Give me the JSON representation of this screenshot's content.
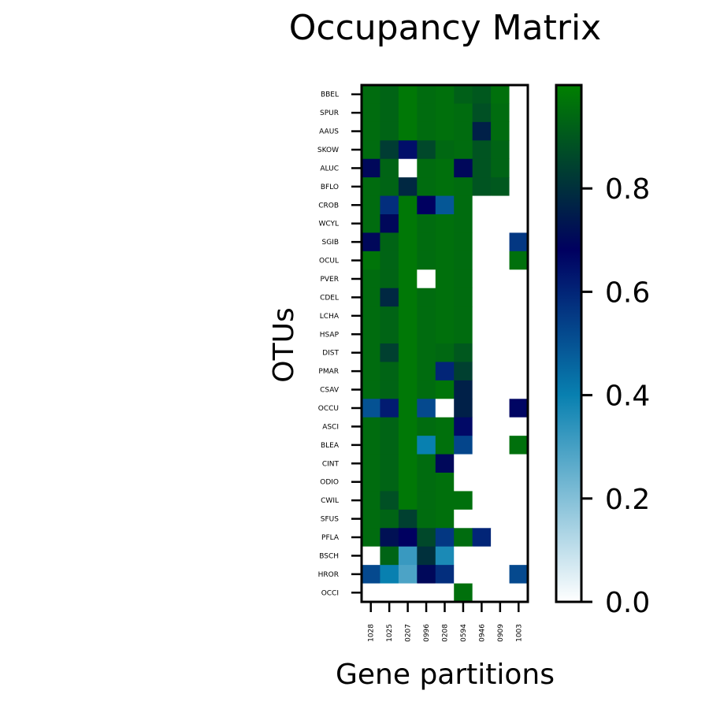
{
  "chart_data": {
    "type": "heatmap",
    "title": "Occupancy Matrix",
    "xlabel": "Gene partitions",
    "ylabel": "OTUs",
    "x_categories": [
      "1028",
      "1025",
      "0207",
      "0996",
      "0208",
      "0594",
      "0946",
      "0909",
      "1003"
    ],
    "y_categories": [
      "BBEL",
      "SPUR",
      "AAUS",
      "SKOW",
      "ALUC",
      "BFLO",
      "CROB",
      "WCYL",
      "SGIB",
      "OCUL",
      "PVER",
      "CDEL",
      "LCHA",
      "HSAP",
      "DIST",
      "PMAR",
      "CSAV",
      "OCCU",
      "ASCI",
      "BLEA",
      "CINT",
      "ODIO",
      "CWIL",
      "SFUS",
      "PFLA",
      "BSCH",
      "HROR",
      "OCCI"
    ],
    "values": [
      [
        0.95,
        0.93,
        0.98,
        0.95,
        0.96,
        0.92,
        0.9,
        0.96,
        0.0
      ],
      [
        0.95,
        0.93,
        0.98,
        0.95,
        0.96,
        0.95,
        0.88,
        0.95,
        0.0
      ],
      [
        0.95,
        0.93,
        0.98,
        0.95,
        0.96,
        0.95,
        0.76,
        0.95,
        0.0
      ],
      [
        0.95,
        0.83,
        0.65,
        0.86,
        0.94,
        0.95,
        0.89,
        0.93,
        0.0
      ],
      [
        0.7,
        0.93,
        0.0,
        0.95,
        0.96,
        0.7,
        0.89,
        0.93,
        0.0
      ],
      [
        0.95,
        0.93,
        0.78,
        0.95,
        0.96,
        0.95,
        0.89,
        0.9,
        0.0
      ],
      [
        0.95,
        0.58,
        0.98,
        0.68,
        0.49,
        0.95,
        0.0,
        0.0,
        0.0
      ],
      [
        0.95,
        0.7,
        0.98,
        0.95,
        0.96,
        0.95,
        0.0,
        0.0,
        0.0
      ],
      [
        0.7,
        0.93,
        0.98,
        0.95,
        0.96,
        0.95,
        0.0,
        0.0,
        0.56
      ],
      [
        0.97,
        0.93,
        0.98,
        0.95,
        0.96,
        0.95,
        0.0,
        0.0,
        0.96
      ],
      [
        0.95,
        0.93,
        0.98,
        0.0,
        0.96,
        0.95,
        0.0,
        0.0,
        0.0
      ],
      [
        0.95,
        0.78,
        0.98,
        0.95,
        0.96,
        0.95,
        0.0,
        0.0,
        0.0
      ],
      [
        0.95,
        0.93,
        0.98,
        0.95,
        0.96,
        0.95,
        0.0,
        0.0,
        0.0
      ],
      [
        0.95,
        0.93,
        0.98,
        0.95,
        0.96,
        0.95,
        0.0,
        0.0,
        0.0
      ],
      [
        0.95,
        0.84,
        0.98,
        0.95,
        0.94,
        0.9,
        0.0,
        0.0,
        0.0
      ],
      [
        0.95,
        0.93,
        0.98,
        0.95,
        0.6,
        0.84,
        0.0,
        0.0,
        0.0
      ],
      [
        0.95,
        0.93,
        0.98,
        0.95,
        0.97,
        0.76,
        0.0,
        0.0,
        0.0
      ],
      [
        0.5,
        0.62,
        0.98,
        0.52,
        0.0,
        0.76,
        0.0,
        0.0,
        0.67
      ],
      [
        0.95,
        0.93,
        0.98,
        0.95,
        0.96,
        0.66,
        0.0,
        0.0,
        0.0
      ],
      [
        0.95,
        0.93,
        0.98,
        0.4,
        0.96,
        0.53,
        0.0,
        0.0,
        0.96
      ],
      [
        0.95,
        0.93,
        0.98,
        0.95,
        0.7,
        0.0,
        0.0,
        0.0,
        0.0
      ],
      [
        0.95,
        0.93,
        0.98,
        0.95,
        0.96,
        0.0,
        0.0,
        0.0,
        0.0
      ],
      [
        0.95,
        0.88,
        0.98,
        0.95,
        0.96,
        0.96,
        0.0,
        0.0,
        0.0
      ],
      [
        0.95,
        0.93,
        0.84,
        0.95,
        0.96,
        0.0,
        0.0,
        0.0,
        0.0
      ],
      [
        0.95,
        0.72,
        0.68,
        0.86,
        0.56,
        0.95,
        0.6,
        0.0,
        0.0
      ],
      [
        0.0,
        0.93,
        0.32,
        0.8,
        0.37,
        0.0,
        0.0,
        0.0,
        0.0
      ],
      [
        0.52,
        0.4,
        0.29,
        0.7,
        0.58,
        0.0,
        0.0,
        0.0,
        0.52
      ],
      [
        0.0,
        0.0,
        0.0,
        0.0,
        0.0,
        0.96,
        0.0,
        0.0,
        0.0
      ]
    ],
    "colorbar": {
      "range": [
        0,
        1
      ],
      "ticks": [
        0.0,
        0.2,
        0.4,
        0.6,
        0.8
      ],
      "tick_labels": [
        "0.0",
        "0.2",
        "0.4",
        "0.6",
        "0.8"
      ],
      "colormap": "ocean_r",
      "colors": {
        "low": "#ffffff",
        "mid_cyan": "#1e88b4",
        "deep_blue": "#000060",
        "green": "#008000"
      }
    },
    "grid": false
  }
}
